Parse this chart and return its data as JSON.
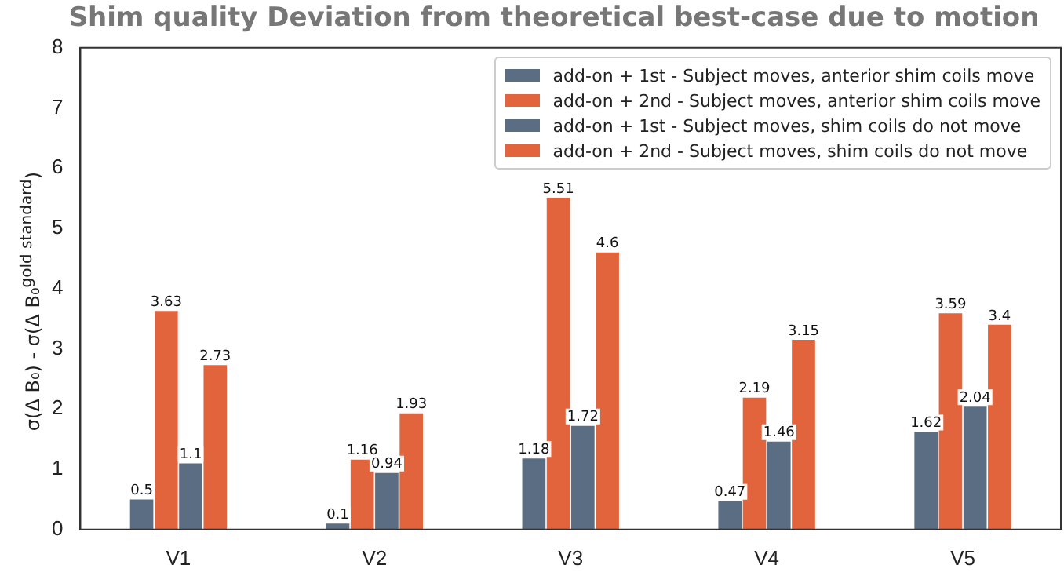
{
  "chart_data": {
    "type": "bar",
    "title": "Shim quality Deviation from theoretical best-case due to motion",
    "ylabel": "σ(Δ B₀) - σ(Δ B₀$^{gold standard}$)",
    "categories": [
      "V1",
      "V2",
      "V3",
      "V4",
      "V5"
    ],
    "series": [
      {
        "name": "add-on + 1st - Subject moves, anterior shim coils move",
        "color": "#5b6d82",
        "values": [
          0.5,
          0.1,
          1.18,
          0.47,
          1.62
        ]
      },
      {
        "name": "add-on + 2nd - Subject moves,  anterior shim coils move",
        "color": "#e2643d",
        "values": [
          3.63,
          1.16,
          5.51,
          2.19,
          3.59
        ]
      },
      {
        "name": "add-on + 1st - Subject moves, shim coils do not move",
        "color": "#5b6d82",
        "values": [
          1.1,
          0.94,
          1.72,
          1.46,
          2.04
        ]
      },
      {
        "name": "add-on + 2nd - Subject moves, shim coils do not move",
        "color": "#e2643d",
        "values": [
          2.73,
          1.93,
          4.6,
          3.15,
          3.4
        ]
      }
    ],
    "ylim": [
      0,
      8
    ],
    "yticks": [
      0,
      1,
      2,
      3,
      4,
      5,
      6,
      7,
      8
    ],
    "grid": false,
    "legend": "top right",
    "data_labels": true
  }
}
